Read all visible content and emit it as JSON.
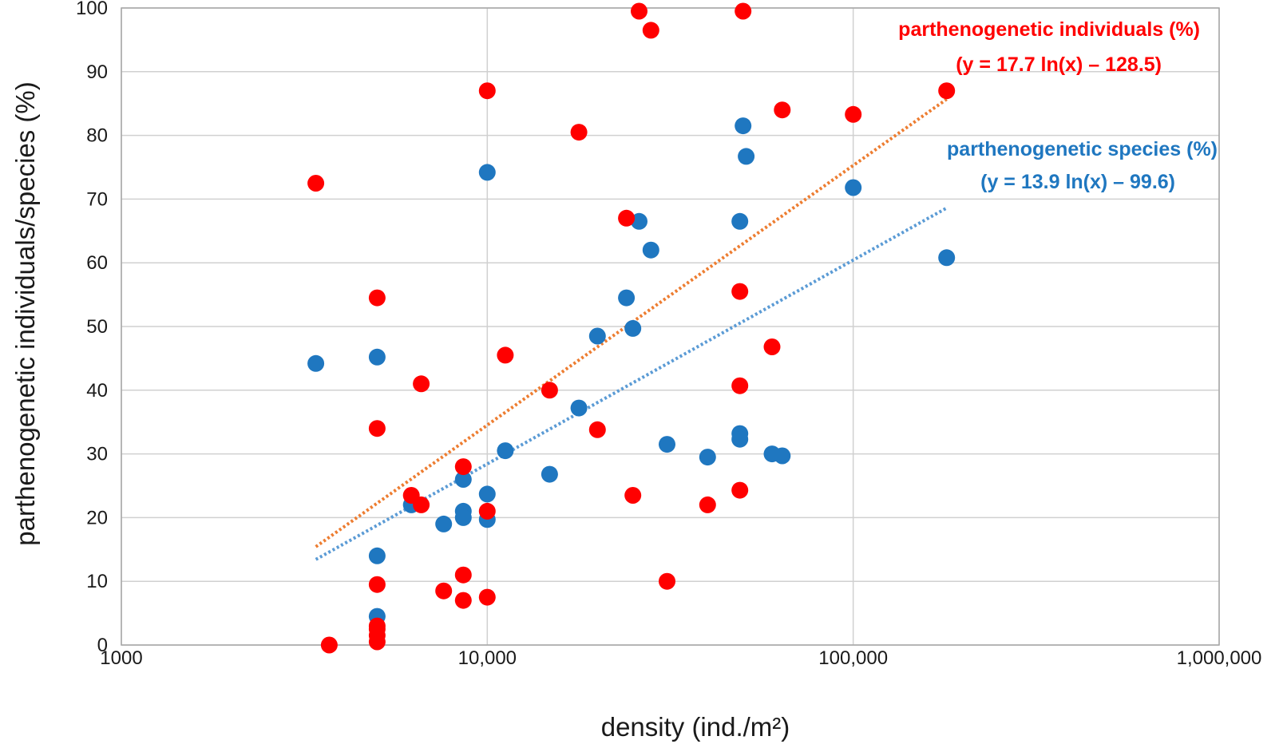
{
  "chart_data": {
    "type": "scatter",
    "xscale": "log",
    "xlim": [
      1000,
      1000000
    ],
    "ylim": [
      0,
      100
    ],
    "grid": true,
    "xlabel": "density (ind./m²)",
    "ylabel": "parthenogenetic individuals/species (%)",
    "xticks": [
      1000,
      10000,
      100000,
      1000000
    ],
    "xtick_labels": [
      "1000",
      "10,000",
      "100,000",
      "1,000,000"
    ],
    "yticks": [
      0,
      10,
      20,
      30,
      40,
      50,
      60,
      70,
      80,
      90,
      100
    ],
    "ytick_labels": [
      "0",
      "10",
      "20",
      "30",
      "40",
      "50",
      "60",
      "70",
      "80",
      "90",
      "100"
    ],
    "annotations": {
      "individuals_title": "parthenogenetic individuals (%)",
      "individuals_eq": "(y = 17.7 ln(x) – 128.5)",
      "species_title": "parthenogenetic species (%)",
      "species_eq": "(y = 13.9 ln(x) – 99.6)"
    },
    "series": [
      {
        "color": "#ff0000",
        "trend_color": "#ed7d31",
        "trendline": {
          "type": "log",
          "a": 17.7,
          "b": -128.5,
          "x_range": [
            3400,
            180000
          ]
        },
        "points": [
          [
            3400,
            72.5
          ],
          [
            3700,
            0
          ],
          [
            5000,
            54.5
          ],
          [
            5000,
            34
          ],
          [
            5000,
            9.5
          ],
          [
            5000,
            3
          ],
          [
            5000,
            2.5
          ],
          [
            5000,
            1.5
          ],
          [
            5000,
            0.5
          ],
          [
            6200,
            23.5
          ],
          [
            6600,
            22
          ],
          [
            6600,
            41
          ],
          [
            7600,
            8.5
          ],
          [
            8600,
            28
          ],
          [
            8600,
            11
          ],
          [
            8600,
            7
          ],
          [
            10000,
            87
          ],
          [
            10000,
            21
          ],
          [
            10000,
            7.5
          ],
          [
            11200,
            45.5
          ],
          [
            14800,
            40
          ],
          [
            17800,
            80.5
          ],
          [
            20000,
            33.8
          ],
          [
            24000,
            67
          ],
          [
            25000,
            23.5
          ],
          [
            26000,
            99.5
          ],
          [
            28000,
            96.5
          ],
          [
            31000,
            10
          ],
          [
            40000,
            22
          ],
          [
            49000,
            55.5
          ],
          [
            49000,
            40.7
          ],
          [
            49000,
            24.3
          ],
          [
            50000,
            99.5
          ],
          [
            60000,
            46.8
          ],
          [
            64000,
            84
          ],
          [
            100000,
            83.3
          ],
          [
            180000,
            87
          ]
        ]
      },
      {
        "color": "#1f77c0",
        "trend_color": "#5b9bd5",
        "trendline": {
          "type": "log",
          "a": 13.9,
          "b": -99.6,
          "x_range": [
            3400,
            180000
          ]
        },
        "points": [
          [
            3400,
            44.2
          ],
          [
            5000,
            45.2
          ],
          [
            5000,
            14
          ],
          [
            5000,
            4.5
          ],
          [
            6200,
            22
          ],
          [
            7600,
            19
          ],
          [
            8600,
            26
          ],
          [
            8600,
            21
          ],
          [
            8600,
            20
          ],
          [
            10000,
            74.2
          ],
          [
            10000,
            23.7
          ],
          [
            10000,
            19.7
          ],
          [
            11200,
            30.5
          ],
          [
            14800,
            26.8
          ],
          [
            17800,
            37.2
          ],
          [
            20000,
            48.5
          ],
          [
            24000,
            54.5
          ],
          [
            25000,
            49.7
          ],
          [
            26000,
            66.5
          ],
          [
            28000,
            62
          ],
          [
            31000,
            31.5
          ],
          [
            40000,
            29.5
          ],
          [
            49000,
            66.5
          ],
          [
            49000,
            33.2
          ],
          [
            49000,
            32.3
          ],
          [
            50000,
            81.5
          ],
          [
            51000,
            76.7
          ],
          [
            60000,
            30
          ],
          [
            64000,
            29.7
          ],
          [
            100000,
            71.8
          ],
          [
            180000,
            60.8
          ]
        ]
      }
    ]
  }
}
